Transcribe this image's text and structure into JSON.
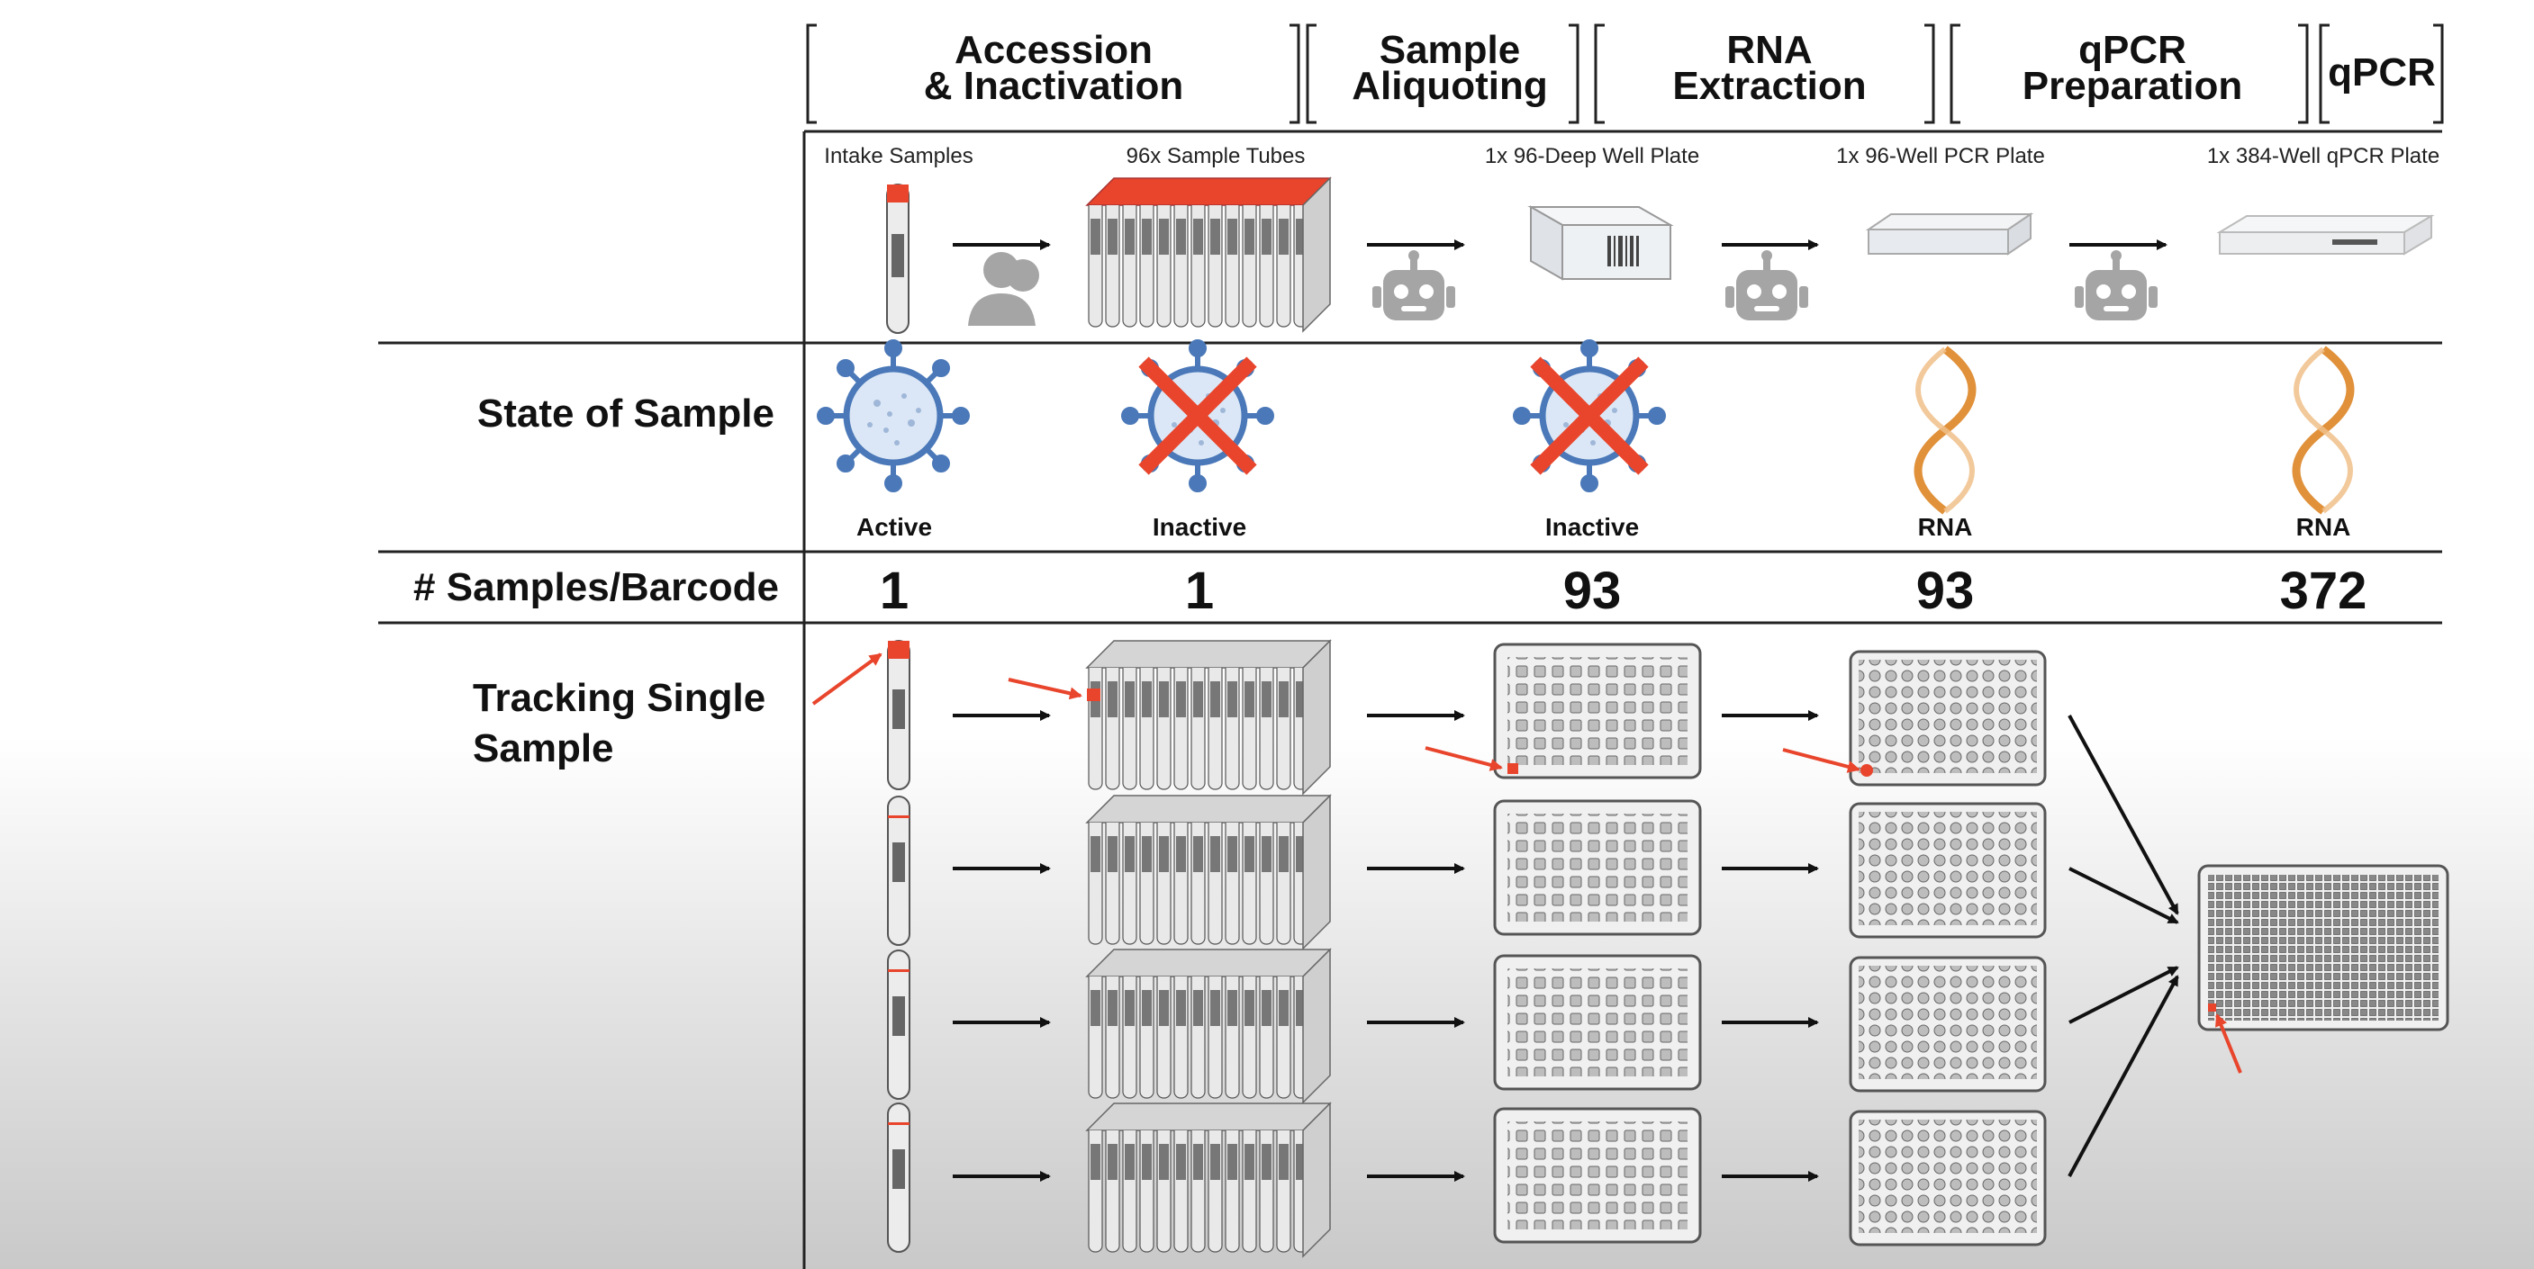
{
  "stages": [
    {
      "title_line1": "Accession",
      "title_line2": "& Inactivation"
    },
    {
      "title_line1": "Sample",
      "title_line2": "Aliquoting"
    },
    {
      "title_line1": "RNA",
      "title_line2": "Extraction"
    },
    {
      "title_line1": "qPCR",
      "title_line2": "Preparation"
    },
    {
      "title_line1": "qPCR",
      "title_line2": ""
    }
  ],
  "columns": [
    {
      "container": "Intake Samples",
      "state": "Active",
      "count": "1"
    },
    {
      "container": "96x Sample Tubes",
      "state": "Inactive",
      "count": "1"
    },
    {
      "container": "1x 96-Deep Well Plate",
      "state": "Inactive",
      "count": "93"
    },
    {
      "container": "1x 96-Well PCR Plate",
      "state": "RNA",
      "count": "93"
    },
    {
      "container": "1x 384-Well qPCR Plate",
      "state": "RNA",
      "count": "372"
    }
  ],
  "rows": {
    "state": "State of Sample",
    "count": "# Samples/Barcode",
    "tracking_line1": "Tracking Single",
    "tracking_line2": "Sample"
  },
  "colors": {
    "red_accent": "#e8452c",
    "virus_blue": "#4a78b8",
    "rna_orange": "#e0913a",
    "robot_gray": "#9a9a9a"
  },
  "icons": {
    "transfer_1": "person-icon",
    "transfer_2": "robot-icon",
    "transfer_3": "robot-icon",
    "transfer_4": "robot-icon"
  }
}
